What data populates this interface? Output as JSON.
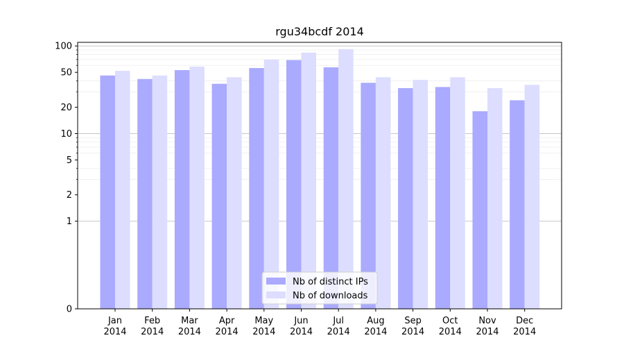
{
  "chart_data": {
    "type": "bar",
    "title": "rgu34bcdf 2014",
    "xlabel": "",
    "ylabel": "",
    "yscale": "symlog",
    "ylim": [
      0,
      110
    ],
    "yticks": [
      0,
      1,
      2,
      5,
      10,
      20,
      50,
      100
    ],
    "grid": true,
    "legend_position": "bottom-center",
    "categories": [
      [
        "Jan",
        "2014"
      ],
      [
        "Feb",
        "2014"
      ],
      [
        "Mar",
        "2014"
      ],
      [
        "Apr",
        "2014"
      ],
      [
        "May",
        "2014"
      ],
      [
        "Jun",
        "2014"
      ],
      [
        "Jul",
        "2014"
      ],
      [
        "Aug",
        "2014"
      ],
      [
        "Sep",
        "2014"
      ],
      [
        "Oct",
        "2014"
      ],
      [
        "Nov",
        "2014"
      ],
      [
        "Dec",
        "2014"
      ]
    ],
    "series": [
      {
        "name": "Nb of distinct IPs",
        "color": "#aaaaff",
        "values": [
          46,
          42,
          53,
          37,
          56,
          69,
          57,
          38,
          33,
          34,
          18,
          24
        ]
      },
      {
        "name": "Nb of downloads",
        "color": "#ddddff",
        "values": [
          52,
          46,
          58,
          44,
          70,
          84,
          92,
          44,
          41,
          44,
          33,
          36
        ]
      }
    ]
  }
}
